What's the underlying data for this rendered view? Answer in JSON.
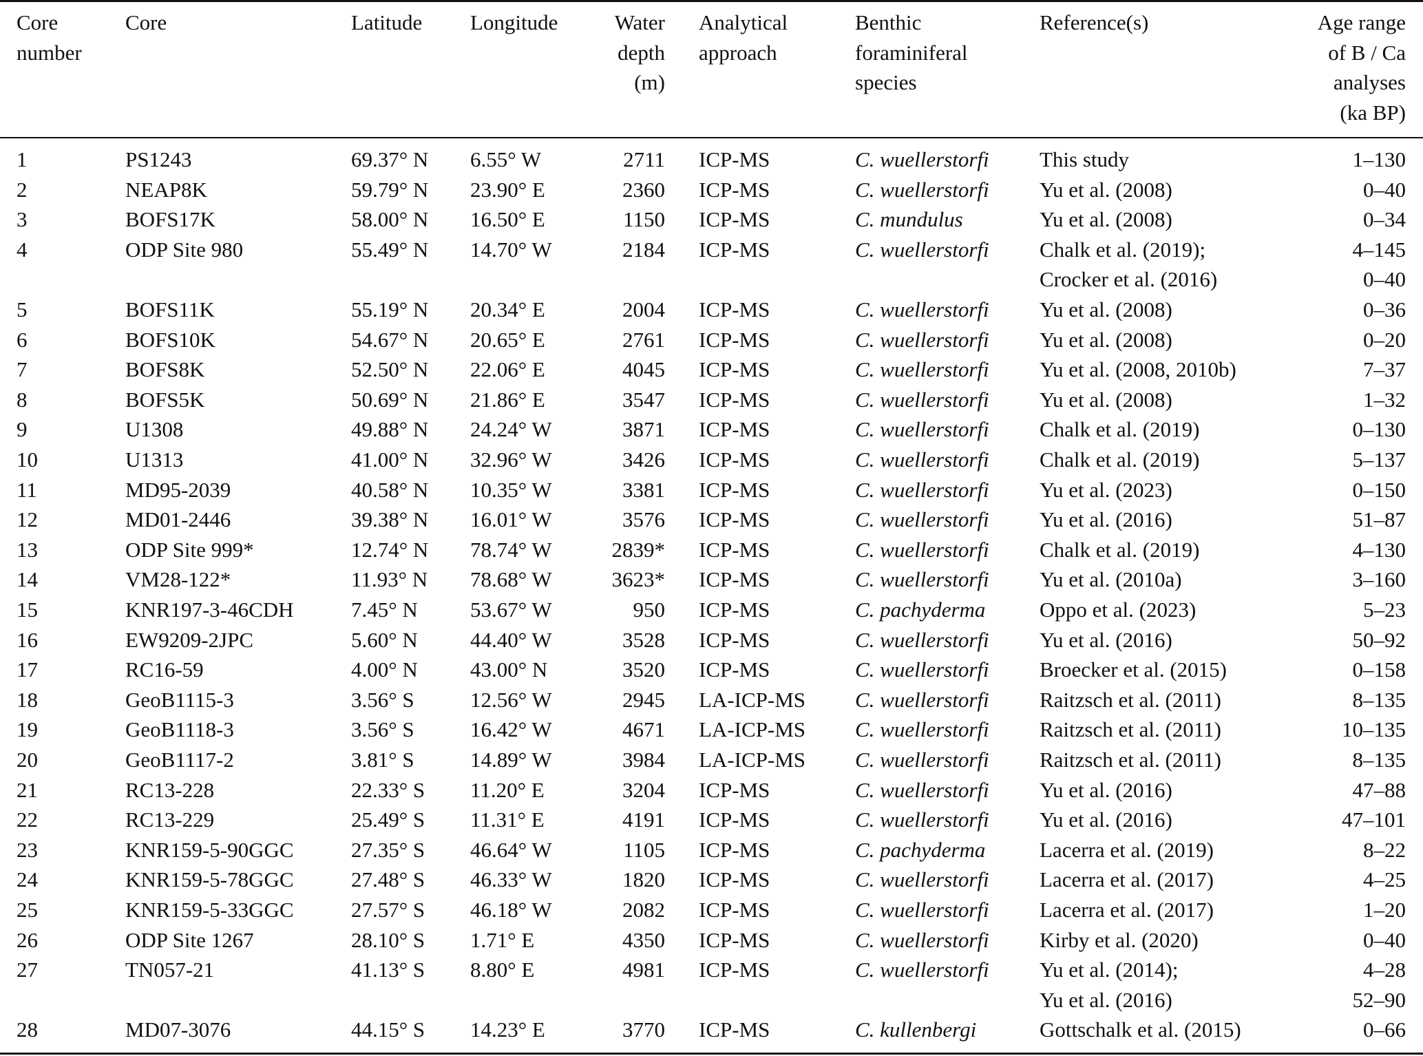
{
  "table": {
    "headers": [
      [
        "Core",
        "number"
      ],
      [
        "Core"
      ],
      [
        "Latitude"
      ],
      [
        "Longitude"
      ],
      [
        "Water",
        "depth",
        "(m)"
      ],
      [
        "Analytical",
        "approach"
      ],
      [
        "Benthic",
        "foraminiferal",
        "species"
      ],
      [
        "Reference(s)"
      ],
      [
        "Age range",
        "of B / Ca",
        "analyses",
        "(ka BP)"
      ]
    ],
    "rows": [
      [
        "1",
        "PS1243",
        "69.37° N",
        "6.55° W",
        "2711",
        "ICP-MS",
        "C. wuellerstorfi",
        "This study",
        "1–130"
      ],
      [
        "2",
        "NEAP8K",
        "59.79° N",
        "23.90° E",
        "2360",
        "ICP-MS",
        "C. wuellerstorfi",
        "Yu et al. (2008)",
        "0–40"
      ],
      [
        "3",
        "BOFS17K",
        "58.00° N",
        "16.50° E",
        "1150",
        "ICP-MS",
        "C. mundulus",
        "Yu et al. (2008)",
        "0–34"
      ],
      [
        "4",
        "ODP Site 980",
        "55.49° N",
        "14.70° W",
        "2184",
        "ICP-MS",
        "C. wuellerstorfi",
        [
          "Chalk et al. (2019);",
          "Crocker et al. (2016)"
        ],
        [
          "4–145",
          "0–40"
        ]
      ],
      [
        "5",
        "BOFS11K",
        "55.19° N",
        "20.34° E",
        "2004",
        "ICP-MS",
        "C. wuellerstorfi",
        "Yu et al. (2008)",
        "0–36"
      ],
      [
        "6",
        "BOFS10K",
        "54.67° N",
        "20.65° E",
        "2761",
        "ICP-MS",
        "C. wuellerstorfi",
        "Yu et al. (2008)",
        "0–20"
      ],
      [
        "7",
        "BOFS8K",
        "52.50° N",
        "22.06° E",
        "4045",
        "ICP-MS",
        "C. wuellerstorfi",
        "Yu et al. (2008, 2010b)",
        "7–37"
      ],
      [
        "8",
        "BOFS5K",
        "50.69° N",
        "21.86° E",
        "3547",
        "ICP-MS",
        "C. wuellerstorfi",
        "Yu et al. (2008)",
        "1–32"
      ],
      [
        "9",
        "U1308",
        "49.88° N",
        "24.24° W",
        "3871",
        "ICP-MS",
        "C. wuellerstorfi",
        "Chalk et al. (2019)",
        "0–130"
      ],
      [
        "10",
        "U1313",
        "41.00° N",
        "32.96° W",
        "3426",
        "ICP-MS",
        "C. wuellerstorfi",
        "Chalk et al. (2019)",
        "5–137"
      ],
      [
        "11",
        "MD95-2039",
        "40.58° N",
        "10.35° W",
        "3381",
        "ICP-MS",
        "C. wuellerstorfi",
        "Yu et al. (2023)",
        "0–150"
      ],
      [
        "12",
        "MD01-2446",
        "39.38° N",
        "16.01° W",
        "3576",
        "ICP-MS",
        "C. wuellerstorfi",
        "Yu et al. (2016)",
        "51–87"
      ],
      [
        "13",
        "ODP Site 999*",
        "12.74° N",
        "78.74° W",
        "2839*",
        "ICP-MS",
        "C. wuellerstorfi",
        "Chalk et al. (2019)",
        "4–130"
      ],
      [
        "14",
        "VM28-122*",
        "11.93° N",
        "78.68° W",
        "3623*",
        "ICP-MS",
        "C. wuellerstorfi",
        "Yu et al. (2010a)",
        "3–160"
      ],
      [
        "15",
        "KNR197-3-46CDH",
        "7.45° N",
        "53.67° W",
        "950",
        "ICP-MS",
        "C. pachyderma",
        "Oppo et al. (2023)",
        "5–23"
      ],
      [
        "16",
        "EW9209-2JPC",
        "5.60° N",
        "44.40° W",
        "3528",
        "ICP-MS",
        "C. wuellerstorfi",
        "Yu et al. (2016)",
        "50–92"
      ],
      [
        "17",
        "RC16-59",
        "4.00° N",
        "43.00° N",
        "3520",
        "ICP-MS",
        "C. wuellerstorfi",
        "Broecker et al. (2015)",
        "0–158"
      ],
      [
        "18",
        "GeoB1115-3",
        "3.56° S",
        "12.56° W",
        "2945",
        "LA-ICP-MS",
        "C. wuellerstorfi",
        "Raitzsch et al. (2011)",
        "8–135"
      ],
      [
        "19",
        "GeoB1118-3",
        "3.56° S",
        "16.42° W",
        "4671",
        "LA-ICP-MS",
        "C. wuellerstorfi",
        "Raitzsch et al. (2011)",
        "10–135"
      ],
      [
        "20",
        "GeoB1117-2",
        "3.81° S",
        "14.89° W",
        "3984",
        "LA-ICP-MS",
        "C. wuellerstorfi",
        "Raitzsch et al. (2011)",
        "8–135"
      ],
      [
        "21",
        "RC13-228",
        "22.33° S",
        "11.20° E",
        "3204",
        "ICP-MS",
        "C. wuellerstorfi",
        "Yu et al. (2016)",
        "47–88"
      ],
      [
        "22",
        "RC13-229",
        "25.49° S",
        "11.31° E",
        "4191",
        "ICP-MS",
        "C. wuellerstorfi",
        "Yu et al. (2016)",
        "47–101"
      ],
      [
        "23",
        "KNR159-5-90GGC",
        "27.35° S",
        "46.64° W",
        "1105",
        "ICP-MS",
        "C. pachyderma",
        "Lacerra et al. (2019)",
        "8–22"
      ],
      [
        "24",
        "KNR159-5-78GGC",
        "27.48° S",
        "46.33° W",
        "1820",
        "ICP-MS",
        "C. wuellerstorfi",
        "Lacerra et al. (2017)",
        "4–25"
      ],
      [
        "25",
        "KNR159-5-33GGC",
        "27.57° S",
        "46.18° W",
        "2082",
        "ICP-MS",
        "C. wuellerstorfi",
        "Lacerra et al. (2017)",
        "1–20"
      ],
      [
        "26",
        "ODP Site 1267",
        "28.10° S",
        "1.71° E",
        "4350",
        "ICP-MS",
        "C. wuellerstorfi",
        "Kirby et al. (2020)",
        "0–40"
      ],
      [
        "27",
        "TN057-21",
        "41.13° S",
        "8.80° E",
        "4981",
        "ICP-MS",
        "C. wuellerstorfi",
        [
          "Yu et al. (2014);",
          "Yu et al. (2016)"
        ],
        [
          "4–28",
          "52–90"
        ]
      ],
      [
        "28",
        "MD07-3076",
        "44.15° S",
        "14.23° E",
        "3770",
        "ICP-MS",
        "C. kullenbergi",
        "Gottschalk et al. (2015)",
        "0–66"
      ]
    ]
  }
}
